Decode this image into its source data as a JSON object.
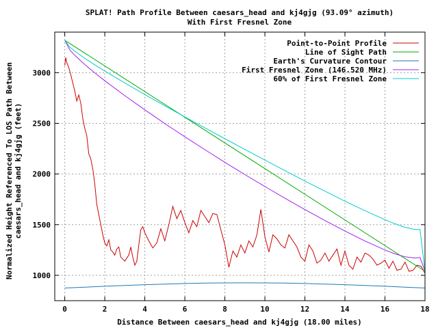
{
  "chart_data": {
    "type": "line",
    "title": "SPLAT! Path Profile Between caesars_head and kj4gjg (93.09° azimuth)",
    "subtitle": "With First Fresnel Zone",
    "xlabel": "Distance Between caesars_head and kj4gjg (18.00 miles)",
    "ylabel_line1": "Normalized Height Referenced To LOS Path Between",
    "ylabel_line2": "caesars_head and kj4gjg (feet)",
    "xlim": [
      -0.5,
      18
    ],
    "ylim": [
      750,
      3400
    ],
    "xticks": [
      0,
      2,
      4,
      6,
      8,
      10,
      12,
      14,
      16,
      18
    ],
    "yticks": [
      1000,
      1500,
      2000,
      2500,
      3000
    ],
    "grid": true,
    "legend_position": "top-right",
    "series": [
      {
        "name": "Point-to-Point Profile",
        "color": "#cc0000",
        "x": [
          0,
          0.05,
          0.1,
          0.2,
          0.3,
          0.4,
          0.5,
          0.6,
          0.7,
          0.8,
          0.9,
          1.0,
          1.1,
          1.2,
          1.3,
          1.4,
          1.5,
          1.6,
          1.7,
          1.8,
          1.9,
          2.0,
          2.1,
          2.2,
          2.3,
          2.4,
          2.5,
          2.6,
          2.7,
          2.8,
          2.9,
          3.0,
          3.1,
          3.2,
          3.3,
          3.4,
          3.5,
          3.6,
          3.7,
          3.8,
          3.9,
          4.0,
          4.2,
          4.4,
          4.6,
          4.8,
          5.0,
          5.2,
          5.4,
          5.6,
          5.8,
          6.0,
          6.2,
          6.4,
          6.6,
          6.8,
          7.0,
          7.2,
          7.4,
          7.6,
          7.8,
          8.0,
          8.2,
          8.4,
          8.6,
          8.8,
          9.0,
          9.2,
          9.4,
          9.6,
          9.8,
          10.0,
          10.2,
          10.4,
          10.6,
          10.8,
          11.0,
          11.2,
          11.4,
          11.6,
          11.8,
          12.0,
          12.2,
          12.4,
          12.6,
          12.8,
          13.0,
          13.2,
          13.4,
          13.6,
          13.8,
          14.0,
          14.2,
          14.4,
          14.6,
          14.8,
          15.0,
          15.2,
          15.4,
          15.6,
          15.8,
          16.0,
          16.2,
          16.4,
          16.6,
          16.8,
          17.0,
          17.2,
          17.4,
          17.6,
          17.8,
          18.0
        ],
        "values": [
          3070,
          3150,
          3100,
          3050,
          2980,
          2900,
          2820,
          2720,
          2780,
          2700,
          2550,
          2450,
          2380,
          2200,
          2150,
          2050,
          1900,
          1700,
          1600,
          1500,
          1400,
          1320,
          1290,
          1350,
          1250,
          1230,
          1200,
          1260,
          1280,
          1180,
          1160,
          1140,
          1170,
          1200,
          1280,
          1180,
          1100,
          1140,
          1300,
          1450,
          1480,
          1420,
          1340,
          1270,
          1320,
          1460,
          1340,
          1500,
          1680,
          1560,
          1640,
          1520,
          1420,
          1540,
          1480,
          1640,
          1580,
          1520,
          1610,
          1600,
          1450,
          1300,
          1080,
          1240,
          1180,
          1300,
          1220,
          1340,
          1280,
          1400,
          1650,
          1380,
          1230,
          1400,
          1360,
          1300,
          1270,
          1400,
          1340,
          1280,
          1180,
          1140,
          1300,
          1240,
          1120,
          1150,
          1220,
          1140,
          1200,
          1260,
          1100,
          1240,
          1100,
          1060,
          1180,
          1130,
          1220,
          1200,
          1160,
          1100,
          1120,
          1150,
          1070,
          1140,
          1050,
          1060,
          1130,
          1040,
          1050,
          1100,
          1090,
          1020
        ]
      },
      {
        "name": "Line of Sight Path",
        "color": "#00aa00",
        "x": [
          0,
          18
        ],
        "values": [
          3320,
          1040
        ]
      },
      {
        "name": "Earth's Curvature Contour",
        "color": "#1f77b4",
        "x": [
          0,
          1,
          2,
          3,
          4,
          5,
          6,
          7,
          8,
          9,
          10,
          11,
          12,
          13,
          14,
          15,
          16,
          17,
          18
        ],
        "values": [
          875,
          883,
          892,
          900,
          908,
          914,
          919,
          923,
          925,
          926,
          925,
          923,
          919,
          914,
          908,
          900,
          892,
          883,
          875
        ]
      },
      {
        "name": "First Fresnel Zone (146.520 MHz)",
        "color": "#a020f0",
        "x": [
          0,
          0.25,
          0.5,
          1,
          1.5,
          2,
          3,
          4,
          5,
          6,
          7,
          8,
          9,
          10,
          11,
          12,
          13,
          14,
          15,
          16,
          16.5,
          17,
          17.5,
          17.75,
          18
        ],
        "values": [
          3320,
          3225,
          3172,
          3080,
          2998,
          2920,
          2773,
          2633,
          2498,
          2367,
          2240,
          2115,
          1994,
          1876,
          1761,
          1649,
          1541,
          1437,
          1339,
          1250,
          1212,
          1183,
          1171,
          1176,
          1040
        ]
      },
      {
        "name": "60% of First Fresnel Zone",
        "color": "#00cccc",
        "x": [
          0,
          0.25,
          0.5,
          1,
          1.5,
          2,
          3,
          4,
          5,
          6,
          7,
          8,
          9,
          10,
          11,
          12,
          13,
          14,
          15,
          16,
          16.5,
          17,
          17.5,
          17.75,
          18
        ],
        "values": [
          3320,
          3252,
          3212,
          3141,
          3078,
          3016,
          2898,
          2784,
          2673,
          2563,
          2455,
          2348,
          2242,
          2137,
          2033,
          1931,
          1831,
          1732,
          1638,
          1550,
          1509,
          1474,
          1452,
          1452,
          1040
        ]
      }
    ]
  }
}
